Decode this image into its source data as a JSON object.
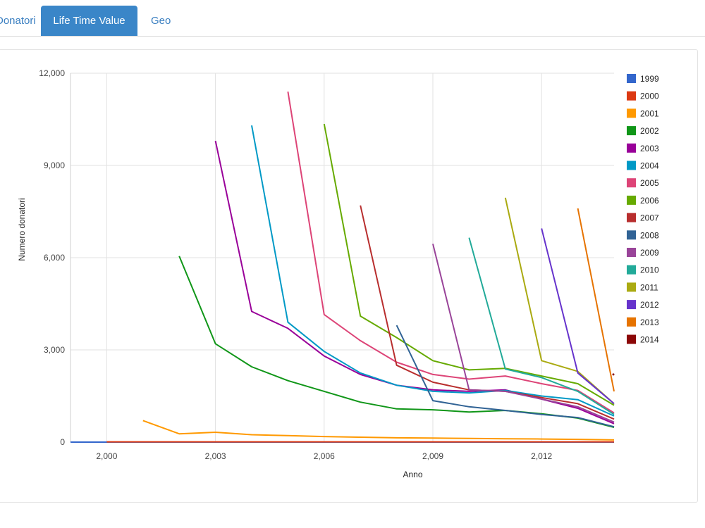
{
  "tabs": [
    {
      "label": "Donatori",
      "active": false
    },
    {
      "label": "Life Time Value",
      "active": true
    },
    {
      "label": "Geo",
      "active": false
    }
  ],
  "colors": {
    "accent": "#3a86c8",
    "link": "#3a7fc1"
  },
  "chart_data": {
    "type": "line",
    "title": "",
    "xlabel": "Anno",
    "ylabel": "Numero donatori",
    "xlim": [
      1999,
      2014
    ],
    "ylim": [
      0,
      12000
    ],
    "x_ticks": [
      2000,
      2003,
      2006,
      2009,
      2012
    ],
    "x_tick_labels": [
      "2,000",
      "2,003",
      "2,006",
      "2,009",
      "2,012"
    ],
    "y_ticks": [
      0,
      3000,
      6000,
      9000,
      12000
    ],
    "y_tick_labels": [
      "0",
      "3,000",
      "6,000",
      "9,000",
      "12,000"
    ],
    "grid": true,
    "legend_position": "right",
    "series": [
      {
        "name": "1999",
        "color": "#3366cc",
        "points": [
          [
            1999,
            0
          ],
          [
            2000,
            0
          ],
          [
            2001,
            0
          ],
          [
            2002,
            0
          ],
          [
            2003,
            0
          ],
          [
            2004,
            0
          ],
          [
            2005,
            0
          ],
          [
            2006,
            0
          ],
          [
            2007,
            0
          ],
          [
            2008,
            0
          ],
          [
            2009,
            0
          ],
          [
            2010,
            0
          ],
          [
            2011,
            0
          ],
          [
            2012,
            0
          ],
          [
            2013,
            0
          ],
          [
            2014,
            0
          ]
        ]
      },
      {
        "name": "2000",
        "color": "#dc3912",
        "points": [
          [
            2000,
            10
          ],
          [
            2001,
            10
          ],
          [
            2002,
            10
          ],
          [
            2003,
            10
          ],
          [
            2004,
            10
          ],
          [
            2005,
            10
          ],
          [
            2006,
            10
          ],
          [
            2007,
            10
          ],
          [
            2008,
            10
          ],
          [
            2009,
            10
          ],
          [
            2010,
            10
          ],
          [
            2011,
            10
          ],
          [
            2012,
            10
          ],
          [
            2013,
            10
          ],
          [
            2014,
            10
          ]
        ]
      },
      {
        "name": "2001",
        "color": "#ff9900",
        "points": [
          [
            2001,
            700
          ],
          [
            2002,
            270
          ],
          [
            2003,
            320
          ],
          [
            2004,
            240
          ],
          [
            2005,
            210
          ],
          [
            2006,
            180
          ],
          [
            2007,
            160
          ],
          [
            2008,
            140
          ],
          [
            2009,
            130
          ],
          [
            2010,
            120
          ],
          [
            2011,
            110
          ],
          [
            2012,
            100
          ],
          [
            2013,
            90
          ],
          [
            2014,
            70
          ]
        ]
      },
      {
        "name": "2002",
        "color": "#109618",
        "points": [
          [
            2002,
            6050
          ],
          [
            2003,
            3200
          ],
          [
            2004,
            2450
          ],
          [
            2005,
            2000
          ],
          [
            2006,
            1650
          ],
          [
            2007,
            1300
          ],
          [
            2008,
            1080
          ],
          [
            2009,
            1050
          ],
          [
            2010,
            980
          ],
          [
            2011,
            1030
          ],
          [
            2012,
            920
          ],
          [
            2013,
            780
          ],
          [
            2014,
            480
          ]
        ]
      },
      {
        "name": "2003",
        "color": "#990099",
        "points": [
          [
            2003,
            9800
          ],
          [
            2004,
            4250
          ],
          [
            2005,
            3700
          ],
          [
            2006,
            2800
          ],
          [
            2007,
            2200
          ],
          [
            2008,
            1850
          ],
          [
            2009,
            1700
          ],
          [
            2010,
            1650
          ],
          [
            2011,
            1700
          ],
          [
            2012,
            1400
          ],
          [
            2013,
            1100
          ],
          [
            2014,
            600
          ]
        ]
      },
      {
        "name": "2004",
        "color": "#0099c6",
        "points": [
          [
            2004,
            10300
          ],
          [
            2005,
            3900
          ],
          [
            2006,
            2950
          ],
          [
            2007,
            2250
          ],
          [
            2008,
            1850
          ],
          [
            2009,
            1650
          ],
          [
            2010,
            1600
          ],
          [
            2011,
            1680
          ],
          [
            2012,
            1500
          ],
          [
            2013,
            1380
          ],
          [
            2014,
            850
          ]
        ]
      },
      {
        "name": "2005",
        "color": "#dd4477",
        "points": [
          [
            2005,
            11400
          ],
          [
            2006,
            4150
          ],
          [
            2007,
            3300
          ],
          [
            2008,
            2600
          ],
          [
            2009,
            2200
          ],
          [
            2010,
            2050
          ],
          [
            2011,
            2150
          ],
          [
            2012,
            1900
          ],
          [
            2013,
            1680
          ],
          [
            2014,
            950
          ]
        ]
      },
      {
        "name": "2006",
        "color": "#66aa00",
        "points": [
          [
            2006,
            10350
          ],
          [
            2007,
            4100
          ],
          [
            2008,
            3400
          ],
          [
            2009,
            2650
          ],
          [
            2010,
            2350
          ],
          [
            2011,
            2400
          ],
          [
            2012,
            2150
          ],
          [
            2013,
            1900
          ],
          [
            2014,
            1200
          ]
        ]
      },
      {
        "name": "2007",
        "color": "#b82e2e",
        "points": [
          [
            2007,
            7700
          ],
          [
            2008,
            2500
          ],
          [
            2009,
            1950
          ],
          [
            2010,
            1700
          ],
          [
            2011,
            1650
          ],
          [
            2012,
            1450
          ],
          [
            2013,
            1250
          ],
          [
            2014,
            750
          ]
        ]
      },
      {
        "name": "2008",
        "color": "#316395",
        "points": [
          [
            2008,
            3800
          ],
          [
            2009,
            1350
          ],
          [
            2010,
            1150
          ],
          [
            2011,
            1030
          ],
          [
            2012,
            900
          ],
          [
            2013,
            800
          ],
          [
            2014,
            500
          ]
        ]
      },
      {
        "name": "2009",
        "color": "#994499",
        "points": [
          [
            2009,
            6450
          ],
          [
            2010,
            1700
          ],
          [
            2011,
            1650
          ],
          [
            2012,
            1400
          ],
          [
            2013,
            1150
          ],
          [
            2014,
            650
          ]
        ]
      },
      {
        "name": "2010",
        "color": "#22aa99",
        "points": [
          [
            2010,
            6650
          ],
          [
            2011,
            2380
          ],
          [
            2012,
            2100
          ],
          [
            2013,
            1650
          ],
          [
            2014,
            900
          ]
        ]
      },
      {
        "name": "2011",
        "color": "#aaaa11",
        "points": [
          [
            2011,
            7950
          ],
          [
            2012,
            2650
          ],
          [
            2013,
            2300
          ],
          [
            2014,
            1250
          ]
        ]
      },
      {
        "name": "2012",
        "color": "#6633cc",
        "points": [
          [
            2012,
            6950
          ],
          [
            2013,
            2250
          ],
          [
            2014,
            1250
          ]
        ]
      },
      {
        "name": "2013",
        "color": "#e67300",
        "points": [
          [
            2013,
            7600
          ],
          [
            2014,
            1650
          ]
        ]
      },
      {
        "name": "2014",
        "color": "#8b0707",
        "points": [
          [
            2014,
            2200
          ]
        ]
      }
    ]
  }
}
